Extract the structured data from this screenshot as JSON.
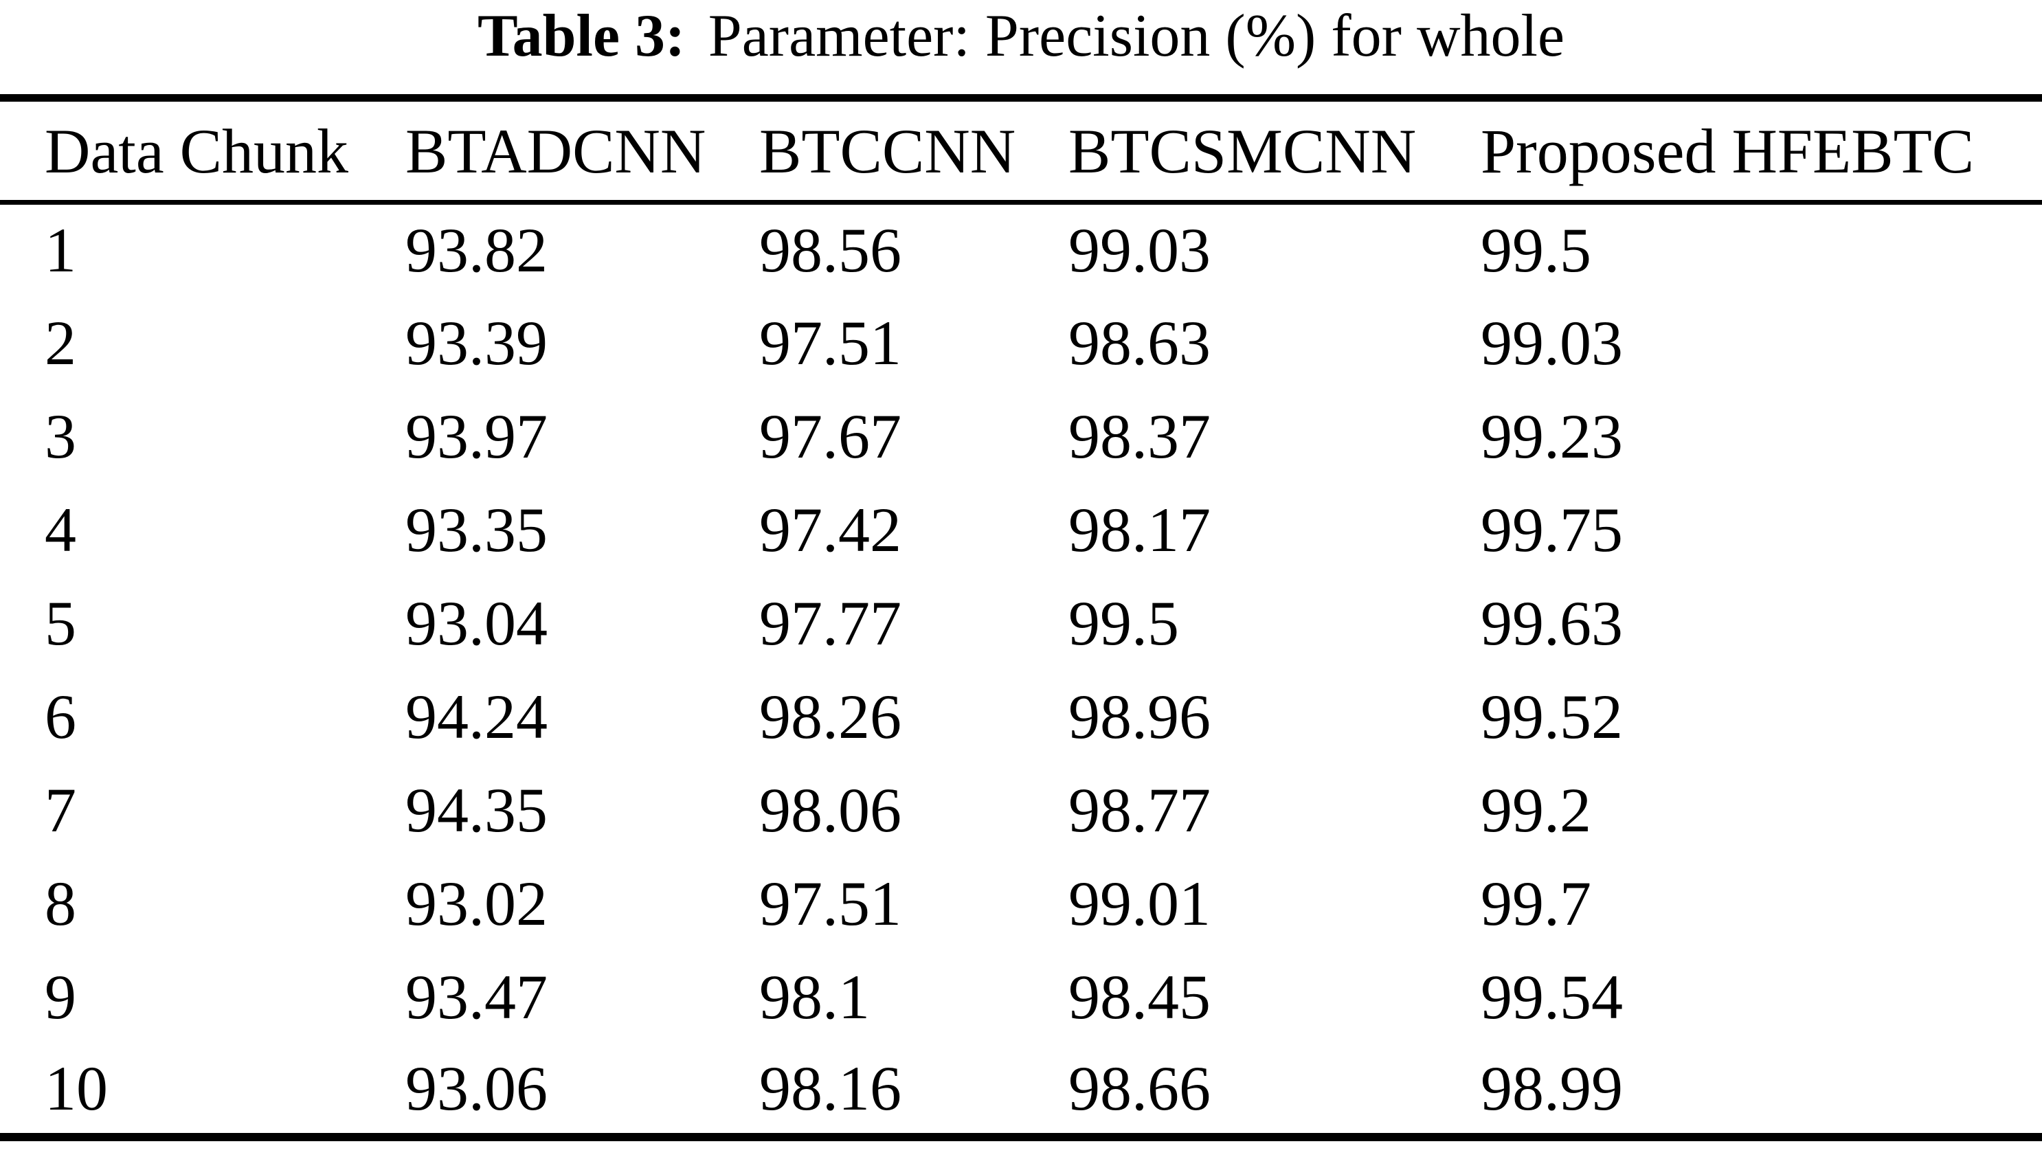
{
  "caption": {
    "label": "Table 3:",
    "text": "Parameter: Precision (%) for whole"
  },
  "chart_data": {
    "type": "table",
    "title": "Table 3: Parameter: Precision (%) for whole",
    "columns": [
      "Data Chunk",
      "BTADCNN",
      "BTCCNN",
      "BTCSMCNN",
      "Proposed HFEBTC"
    ],
    "rows": [
      [
        "1",
        "93.82",
        "98.56",
        "99.03",
        "99.5"
      ],
      [
        "2",
        "93.39",
        "97.51",
        "98.63",
        "99.03"
      ],
      [
        "3",
        "93.97",
        "97.67",
        "98.37",
        "99.23"
      ],
      [
        "4",
        "93.35",
        "97.42",
        "98.17",
        "99.75"
      ],
      [
        "5",
        "93.04",
        "97.77",
        "99.5",
        "99.63"
      ],
      [
        "6",
        "94.24",
        "98.26",
        "98.96",
        "99.52"
      ],
      [
        "7",
        "94.35",
        "98.06",
        "98.77",
        "99.2"
      ],
      [
        "8",
        "93.02",
        "97.51",
        "99.01",
        "99.7"
      ],
      [
        "9",
        "93.47",
        "98.1",
        "98.45",
        "99.54"
      ],
      [
        "10",
        "93.06",
        "98.16",
        "98.66",
        "98.99"
      ]
    ]
  },
  "colors": {
    "text": "#000000",
    "background": "#ffffff",
    "rule": "#000000"
  }
}
